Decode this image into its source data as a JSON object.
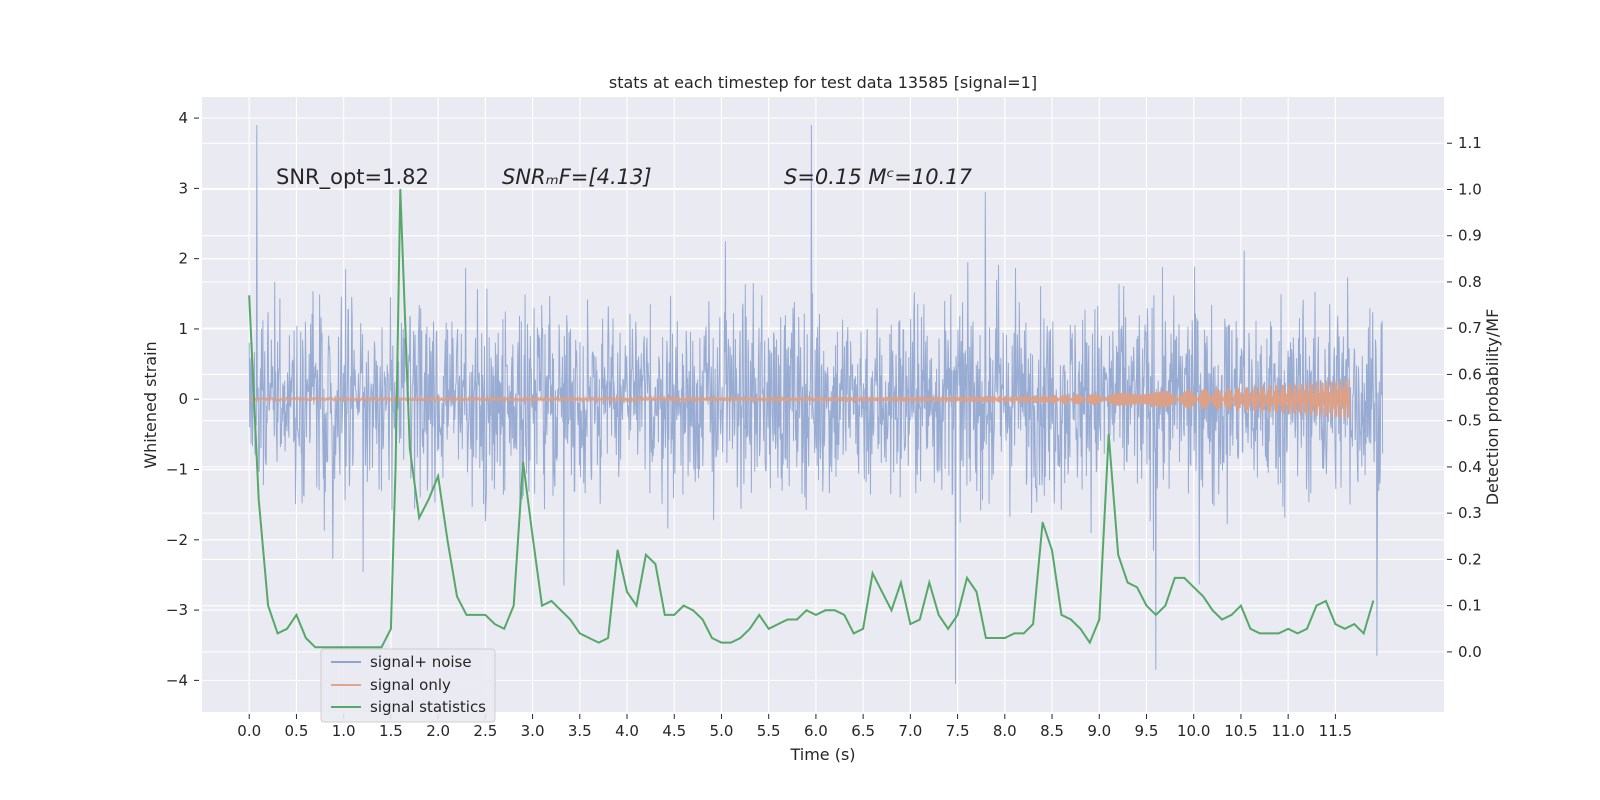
{
  "chart_data": {
    "type": "line",
    "title": "stats at each timestep for test data 13585 [signal=1]",
    "xlabel": "Time (s)",
    "ylabel": "Whitened strain",
    "y2label": "Detection probability/MF",
    "xlim": [
      -0.5,
      12.65
    ],
    "ylim": [
      -4.45,
      4.3
    ],
    "y2lim": [
      -0.13,
      1.2
    ],
    "xticks": [
      0.0,
      0.5,
      1.0,
      1.5,
      2.0,
      2.5,
      3.0,
      3.5,
      4.0,
      4.5,
      5.0,
      5.5,
      6.0,
      6.5,
      7.0,
      7.5,
      8.0,
      8.5,
      9.0,
      9.5,
      10.0,
      10.5,
      11.0,
      11.5
    ],
    "xtick_labels": [
      "0.0",
      "0.5",
      "1.0",
      "1.5",
      "2.0",
      "2.5",
      "3.0",
      "3.5",
      "4.0",
      "4.5",
      "5.0",
      "5.5",
      "6.0",
      "6.5",
      "7.0",
      "7.5",
      "8.0",
      "8.5",
      "9.0",
      "9.5",
      "10.0",
      "10.5",
      "11.0",
      "11.5"
    ],
    "yticks": [
      -4,
      -3,
      -2,
      -1,
      0,
      1,
      2,
      3,
      4
    ],
    "ytick_labels": [
      "−4",
      "−3",
      "−2",
      "−1",
      "0",
      "1",
      "2",
      "3",
      "4"
    ],
    "y2ticks": [
      0.0,
      0.1,
      0.2,
      0.3,
      0.4,
      0.5,
      0.6,
      0.7,
      0.8,
      0.9,
      1.0,
      1.1
    ],
    "y2tick_labels": [
      "0.0",
      "0.1",
      "0.2",
      "0.3",
      "0.4",
      "0.5",
      "0.6",
      "0.7",
      "0.8",
      "0.9",
      "1.0",
      "1.1"
    ],
    "annotations": [
      {
        "id": "snr-opt",
        "text": "SNR_opt=1.82"
      },
      {
        "id": "snr-mf",
        "text": "SNRₘF=[4.13]"
      },
      {
        "id": "s-mc",
        "text": "S=0.15   Mᶜ=10.17"
      }
    ],
    "legend": {
      "placement": "lower-left",
      "entries": [
        {
          "label": "signal+ noise",
          "color": "#8fa4ce"
        },
        {
          "label": "signal only",
          "color": "#e0a58c"
        },
        {
          "label": "signal statistics",
          "color": "#55a868"
        }
      ]
    },
    "series": [
      {
        "name": "signal+ noise",
        "axis": "left",
        "render": "dense-noise",
        "x_range": [
          0.0,
          12.0
        ],
        "samples": 2400,
        "core_band": [
          -1.4,
          1.8
        ],
        "typical_peaks": [
          2.6,
          -2.9
        ],
        "extremes": [
          {
            "x": 0.08,
            "y": 3.9
          },
          {
            "x": 5.95,
            "y": 3.9
          },
          {
            "x": 7.48,
            "y": -4.05
          },
          {
            "x": 11.94,
            "y": -3.65
          },
          {
            "x": 9.6,
            "y": -3.85
          }
        ]
      },
      {
        "name": "signal only",
        "axis": "left",
        "render": "chirp",
        "x_range": [
          0.0,
          11.65
        ],
        "amplitude_start": 0.02,
        "amplitude_end": 0.3
      },
      {
        "name": "signal statistics",
        "axis": "right",
        "x": [
          0.0,
          0.1,
          0.2,
          0.3,
          0.4,
          0.5,
          0.6,
          0.7,
          0.8,
          0.9,
          1.0,
          1.1,
          1.2,
          1.3,
          1.4,
          1.5,
          1.55,
          1.6,
          1.7,
          1.8,
          1.9,
          2.0,
          2.1,
          2.2,
          2.3,
          2.4,
          2.5,
          2.6,
          2.7,
          2.8,
          2.9,
          3.0,
          3.1,
          3.2,
          3.3,
          3.4,
          3.5,
          3.6,
          3.7,
          3.8,
          3.9,
          4.0,
          4.1,
          4.2,
          4.3,
          4.4,
          4.5,
          4.6,
          4.7,
          4.8,
          4.9,
          5.0,
          5.1,
          5.2,
          5.3,
          5.4,
          5.5,
          5.6,
          5.7,
          5.8,
          5.9,
          6.0,
          6.1,
          6.2,
          6.3,
          6.4,
          6.5,
          6.6,
          6.7,
          6.8,
          6.9,
          7.0,
          7.1,
          7.2,
          7.3,
          7.4,
          7.5,
          7.6,
          7.7,
          7.8,
          7.9,
          8.0,
          8.1,
          8.2,
          8.3,
          8.4,
          8.5,
          8.6,
          8.7,
          8.8,
          8.9,
          9.0,
          9.1,
          9.2,
          9.3,
          9.4,
          9.5,
          9.6,
          9.7,
          9.8,
          9.9,
          10.0,
          10.1,
          10.2,
          10.3,
          10.4,
          10.5,
          10.6,
          10.7,
          10.8,
          10.9,
          11.0,
          11.1,
          11.2,
          11.3,
          11.4,
          11.5,
          11.6,
          11.7,
          11.8,
          11.9
        ],
        "values": [
          0.77,
          0.33,
          0.1,
          0.04,
          0.05,
          0.08,
          0.03,
          0.01,
          0.01,
          0.01,
          0.01,
          0.01,
          0.01,
          0.01,
          0.01,
          0.05,
          0.4,
          1.0,
          0.44,
          0.29,
          0.33,
          0.38,
          0.24,
          0.12,
          0.08,
          0.08,
          0.08,
          0.06,
          0.05,
          0.1,
          0.41,
          0.25,
          0.1,
          0.11,
          0.09,
          0.07,
          0.04,
          0.03,
          0.02,
          0.03,
          0.22,
          0.13,
          0.1,
          0.21,
          0.19,
          0.08,
          0.08,
          0.1,
          0.09,
          0.07,
          0.03,
          0.02,
          0.02,
          0.03,
          0.05,
          0.08,
          0.05,
          0.06,
          0.07,
          0.07,
          0.09,
          0.08,
          0.09,
          0.09,
          0.08,
          0.04,
          0.05,
          0.17,
          0.13,
          0.09,
          0.15,
          0.06,
          0.07,
          0.15,
          0.08,
          0.05,
          0.08,
          0.16,
          0.13,
          0.03,
          0.03,
          0.03,
          0.04,
          0.04,
          0.06,
          0.28,
          0.22,
          0.08,
          0.07,
          0.05,
          0.02,
          0.07,
          0.47,
          0.21,
          0.15,
          0.14,
          0.1,
          0.08,
          0.1,
          0.16,
          0.16,
          0.14,
          0.12,
          0.09,
          0.07,
          0.08,
          0.1,
          0.05,
          0.04,
          0.04,
          0.04,
          0.05,
          0.04,
          0.05,
          0.1,
          0.11,
          0.06,
          0.05,
          0.06,
          0.04,
          0.11
        ]
      }
    ]
  }
}
